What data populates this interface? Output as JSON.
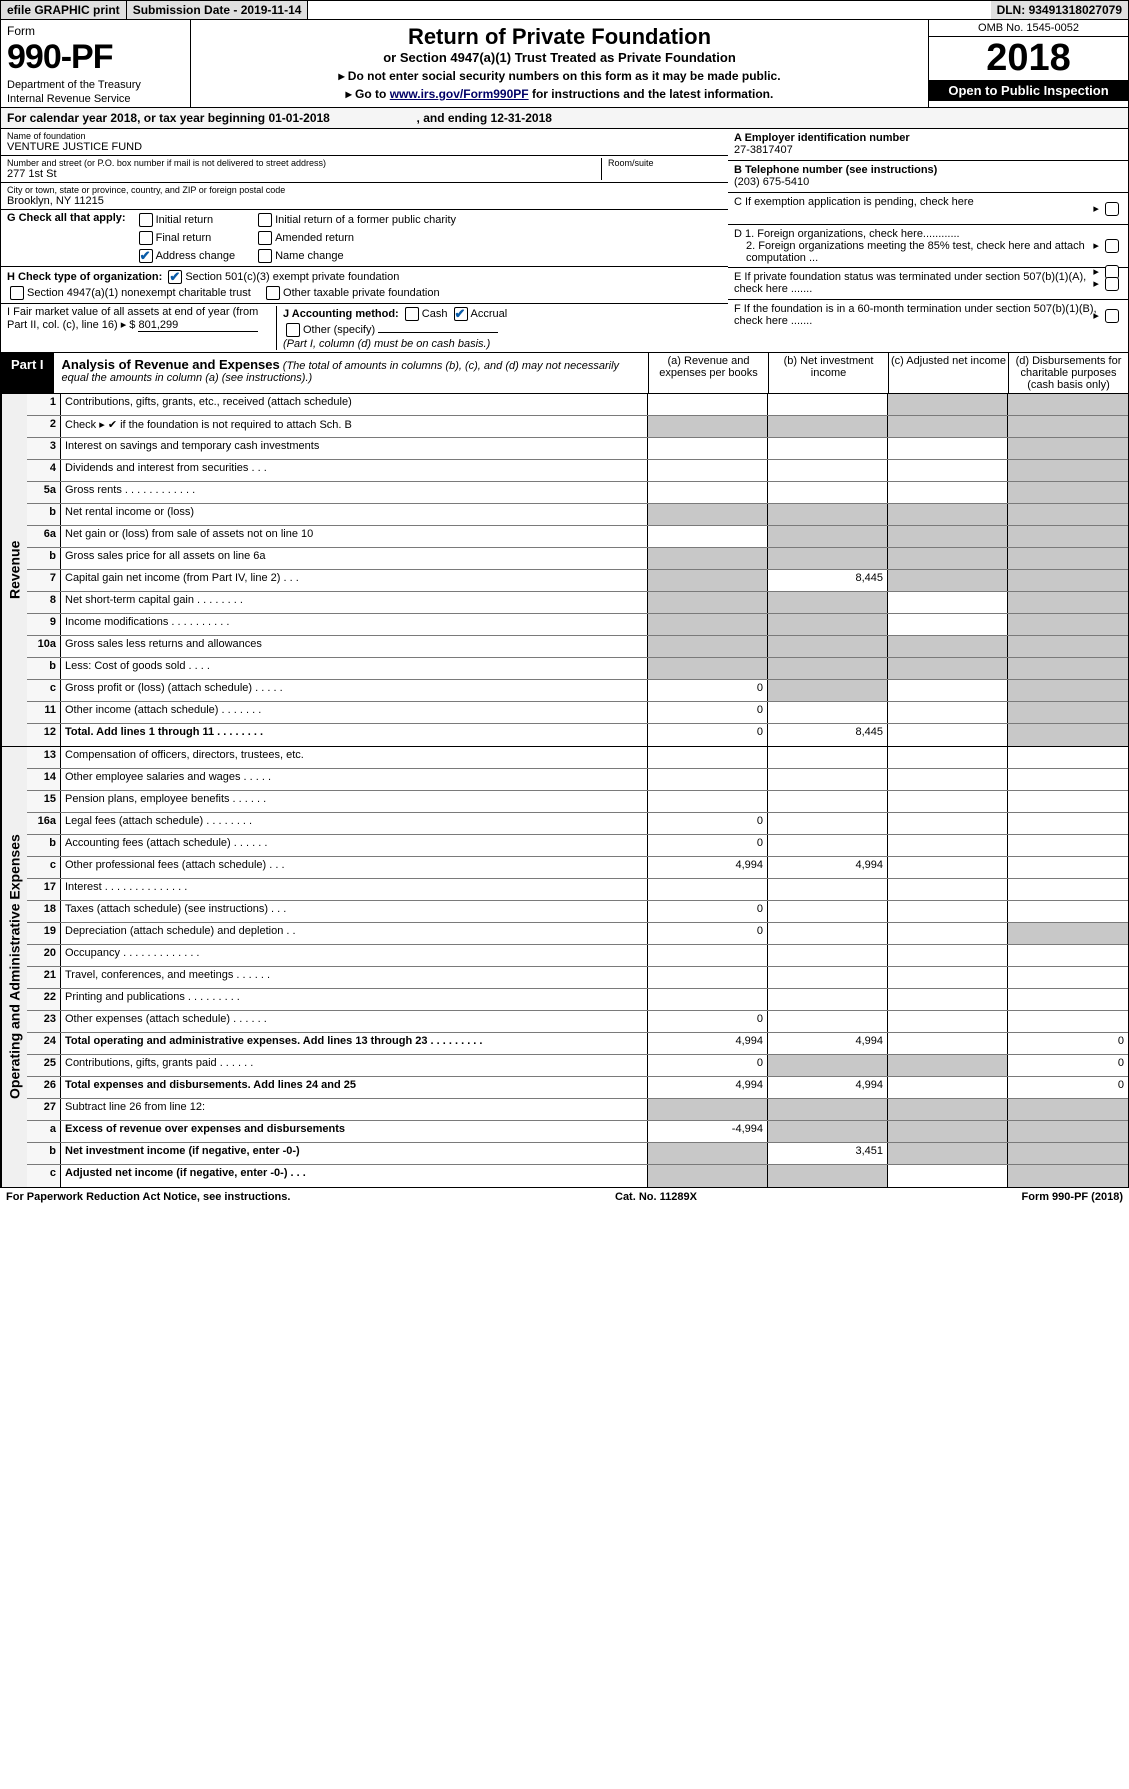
{
  "topbar": {
    "efile": "efile GRAPHIC print",
    "subdate_label": "Submission Date - ",
    "subdate": "2019-11-14",
    "dln_label": "DLN: ",
    "dln": "93491318027079"
  },
  "header": {
    "form_word": "Form",
    "form_num": "990-PF",
    "dept1": "Department of the Treasury",
    "dept2": "Internal Revenue Service",
    "title": "Return of Private Foundation",
    "subtitle": "or Section 4947(a)(1) Trust Treated as Private Foundation",
    "note1": "▸ Do not enter social security numbers on this form as it may be made public.",
    "note2_pre": "▸ Go to ",
    "note2_link": "www.irs.gov/Form990PF",
    "note2_post": " for instructions and the latest information.",
    "omb": "OMB No. 1545-0052",
    "year": "2018",
    "open": "Open to Public Inspection"
  },
  "cal": {
    "prefix": "For calendar year 2018, or tax year beginning ",
    "begin": "01-01-2018",
    "mid": " , and ending ",
    "end": "12-31-2018"
  },
  "name": {
    "lbl": "Name of foundation",
    "val": "VENTURE JUSTICE FUND"
  },
  "addr": {
    "lbl": "Number and street (or P.O. box number if mail is not delivered to street address)",
    "room_lbl": "Room/suite",
    "val": "277 1st St"
  },
  "city": {
    "lbl": "City or town, state or province, country, and ZIP or foreign postal code",
    "val": "Brooklyn, NY  11215"
  },
  "ein": {
    "lbl": "A Employer identification number",
    "val": "27-3817407"
  },
  "phone": {
    "lbl": "B Telephone number (see instructions)",
    "val": "(203) 675-5410"
  },
  "C": "C If exemption application is pending, check here",
  "D1": "D 1. Foreign organizations, check here............",
  "D2": "2. Foreign organizations meeting the 85% test, check here and attach computation ...",
  "E": "E If private foundation status was terminated under section 507(b)(1)(A), check here .......",
  "F": "F If the foundation is in a 60-month termination under section 507(b)(1)(B), check here .......",
  "G": {
    "lbl": "G Check all that apply:",
    "opts": [
      "Initial return",
      "Final return",
      "Address change",
      "Initial return of a former public charity",
      "Amended return",
      "Name change"
    ]
  },
  "H": {
    "lbl": "H Check type of organization:",
    "o1": "Section 501(c)(3) exempt private foundation",
    "o2": "Section 4947(a)(1) nonexempt charitable trust",
    "o3": "Other taxable private foundation"
  },
  "I": {
    "lbl": "I Fair market value of all assets at end of year (from Part II, col. (c), line 16) ▸ $",
    "val": "801,299"
  },
  "J": {
    "lbl": "J Accounting method:",
    "o1": "Cash",
    "o2": "Accrual",
    "o3": "Other (specify)",
    "note": "(Part I, column (d) must be on cash basis.)"
  },
  "part1": {
    "tag": "Part I",
    "title": "Analysis of Revenue and Expenses",
    "note": "(The total of amounts in columns (b), (c), and (d) may not necessarily equal the amounts in column (a) (see instructions).)",
    "col_a": "(a) Revenue and expenses per books",
    "col_b": "(b) Net investment income",
    "col_c": "(c) Adjusted net income",
    "col_d": "(d) Disbursements for charitable purposes (cash basis only)"
  },
  "side_rev": "Revenue",
  "side_exp": "Operating and Administrative Expenses",
  "rows_rev": [
    {
      "n": "1",
      "d": "Contributions, gifts, grants, etc., received (attach schedule)",
      "a": "",
      "b": "",
      "c": "s",
      "dcol": "s"
    },
    {
      "n": "2",
      "d": "Check ▸ ✔ if the foundation is not required to attach Sch. B",
      "a": "s",
      "b": "s",
      "c": "s",
      "dcol": "s",
      "ck": true
    },
    {
      "n": "3",
      "d": "Interest on savings and temporary cash investments",
      "a": "",
      "b": "",
      "c": "",
      "dcol": "s"
    },
    {
      "n": "4",
      "d": "Dividends and interest from securities   .   .   .",
      "a": "",
      "b": "",
      "c": "",
      "dcol": "s"
    },
    {
      "n": "5a",
      "d": "Gross rents   .  .  .  .  .  .  .  .  .  .  .  .",
      "a": "",
      "b": "",
      "c": "",
      "dcol": "s"
    },
    {
      "n": "b",
      "d": "Net rental income or (loss)",
      "a": "s",
      "b": "s",
      "c": "s",
      "dcol": "s"
    },
    {
      "n": "6a",
      "d": "Net gain or (loss) from sale of assets not on line 10",
      "a": "",
      "b": "s",
      "c": "s",
      "dcol": "s"
    },
    {
      "n": "b",
      "d": "Gross sales price for all assets on line 6a",
      "a": "s",
      "b": "s",
      "c": "s",
      "dcol": "s"
    },
    {
      "n": "7",
      "d": "Capital gain net income (from Part IV, line 2)   .   .   .",
      "a": "s",
      "b": "8,445",
      "c": "s",
      "dcol": "s"
    },
    {
      "n": "8",
      "d": "Net short-term capital gain   .  .  .  .  .  .  .  .",
      "a": "s",
      "b": "s",
      "c": "",
      "dcol": "s"
    },
    {
      "n": "9",
      "d": "Income modifications  .  .  .  .  .  .  .  .  .  .",
      "a": "s",
      "b": "s",
      "c": "",
      "dcol": "s"
    },
    {
      "n": "10a",
      "d": "Gross sales less returns and allowances",
      "a": "s",
      "b": "s",
      "c": "s",
      "dcol": "s"
    },
    {
      "n": "b",
      "d": "Less: Cost of goods sold   .   .   .   .",
      "a": "s",
      "b": "s",
      "c": "s",
      "dcol": "s"
    },
    {
      "n": "c",
      "d": "Gross profit or (loss) (attach schedule)   .  .  .  .  .",
      "a": "0",
      "b": "s",
      "c": "",
      "dcol": "s"
    },
    {
      "n": "11",
      "d": "Other income (attach schedule)   .  .  .  .  .  .  .",
      "a": "0",
      "b": "",
      "c": "",
      "dcol": "s"
    },
    {
      "n": "12",
      "d": "Total. Add lines 1 through 11   .  .  .  .  .  .  .  .",
      "a": "0",
      "b": "8,445",
      "c": "",
      "dcol": "s",
      "bold": true
    }
  ],
  "rows_exp": [
    {
      "n": "13",
      "d": "Compensation of officers, directors, trustees, etc.",
      "a": "",
      "b": "",
      "c": "",
      "dcol": ""
    },
    {
      "n": "14",
      "d": "Other employee salaries and wages   .  .  .  .  .",
      "a": "",
      "b": "",
      "c": "",
      "dcol": ""
    },
    {
      "n": "15",
      "d": "Pension plans, employee benefits   .  .  .  .  .  .",
      "a": "",
      "b": "",
      "c": "",
      "dcol": ""
    },
    {
      "n": "16a",
      "d": "Legal fees (attach schedule)  .  .  .  .  .  .  .  .",
      "a": "0",
      "b": "",
      "c": "",
      "dcol": ""
    },
    {
      "n": "b",
      "d": "Accounting fees (attach schedule)  .  .  .  .  .  .",
      "a": "0",
      "b": "",
      "c": "",
      "dcol": ""
    },
    {
      "n": "c",
      "d": "Other professional fees (attach schedule)   .  .  .",
      "a": "4,994",
      "b": "4,994",
      "c": "",
      "dcol": ""
    },
    {
      "n": "17",
      "d": "Interest  .  .  .  .  .  .  .  .  .  .  .  .  .  .",
      "a": "",
      "b": "",
      "c": "",
      "dcol": ""
    },
    {
      "n": "18",
      "d": "Taxes (attach schedule) (see instructions)   .  .  .",
      "a": "0",
      "b": "",
      "c": "",
      "dcol": ""
    },
    {
      "n": "19",
      "d": "Depreciation (attach schedule) and depletion   .  .",
      "a": "0",
      "b": "",
      "c": "",
      "dcol": "s"
    },
    {
      "n": "20",
      "d": "Occupancy  .  .  .  .  .  .  .  .  .  .  .  .  .",
      "a": "",
      "b": "",
      "c": "",
      "dcol": ""
    },
    {
      "n": "21",
      "d": "Travel, conferences, and meetings  .  .  .  .  .  .",
      "a": "",
      "b": "",
      "c": "",
      "dcol": ""
    },
    {
      "n": "22",
      "d": "Printing and publications  .  .  .  .  .  .  .  .  .",
      "a": "",
      "b": "",
      "c": "",
      "dcol": ""
    },
    {
      "n": "23",
      "d": "Other expenses (attach schedule)  .  .  .  .  .  .",
      "a": "0",
      "b": "",
      "c": "",
      "dcol": ""
    },
    {
      "n": "24",
      "d": "Total operating and administrative expenses. Add lines 13 through 23  .  .  .  .  .  .  .  .  .",
      "a": "4,994",
      "b": "4,994",
      "c": "",
      "dcol": "0",
      "bold": true
    },
    {
      "n": "25",
      "d": "Contributions, gifts, grants paid   .  .  .  .  .  .",
      "a": "0",
      "b": "s",
      "c": "s",
      "dcol": "0"
    },
    {
      "n": "26",
      "d": "Total expenses and disbursements. Add lines 24 and 25",
      "a": "4,994",
      "b": "4,994",
      "c": "",
      "dcol": "0",
      "bold": true
    },
    {
      "n": "27",
      "d": "Subtract line 26 from line 12:",
      "a": "s",
      "b": "s",
      "c": "s",
      "dcol": "s"
    },
    {
      "n": "a",
      "d": "Excess of revenue over expenses and disbursements",
      "a": "-4,994",
      "b": "s",
      "c": "s",
      "dcol": "s",
      "bold": true
    },
    {
      "n": "b",
      "d": "Net investment income (if negative, enter -0-)",
      "a": "s",
      "b": "3,451",
      "c": "s",
      "dcol": "s",
      "bold": true
    },
    {
      "n": "c",
      "d": "Adjusted net income (if negative, enter -0-)  .  .  .",
      "a": "s",
      "b": "s",
      "c": "",
      "dcol": "s",
      "bold": true
    }
  ],
  "footer": {
    "left": "For Paperwork Reduction Act Notice, see instructions.",
    "mid": "Cat. No. 11289X",
    "right": "Form 990-PF (2018)"
  }
}
